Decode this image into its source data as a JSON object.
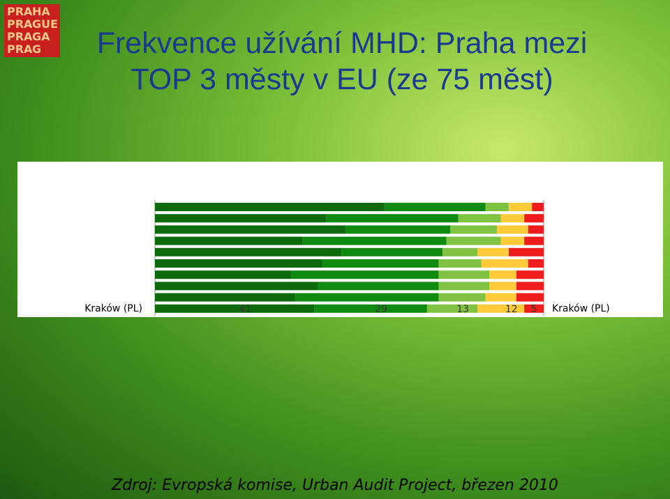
{
  "logo": [
    [
      "PRA",
      "HA"
    ],
    [
      "PRA",
      "GUE"
    ],
    [
      "PRA",
      "GA"
    ],
    [
      "PRA",
      "G"
    ]
  ],
  "source": "Zdroj: Evropská komise, Urban Audit Project, březen 2010",
  "chart_data": {
    "type": "stacked-bar-horizontal",
    "title": "Frekvence užívání MHD: Praha mezi TOP 3 městy v EU (ze 75 měst)",
    "categories": [
      null,
      null,
      null,
      null,
      null,
      null,
      null,
      null,
      null,
      "Kraków (PL)"
    ],
    "xlim": [
      0,
      100
    ],
    "series": [
      {
        "color": "#0d6a0d",
        "values": [
          59,
          44,
          49,
          38,
          48,
          43,
          35,
          42,
          36,
          41
        ]
      },
      {
        "color": "#118a11",
        "values": [
          26,
          34,
          27,
          37,
          26,
          30,
          38,
          31,
          37,
          29
        ]
      },
      {
        "color": "#80c242",
        "values": [
          6,
          11,
          12,
          14,
          9,
          11,
          13,
          13,
          12,
          13
        ]
      },
      {
        "color": "#fdcb3a",
        "values": [
          6,
          6,
          8,
          6,
          8,
          12,
          7,
          7,
          8,
          12
        ]
      },
      {
        "color": "#ee1c1c",
        "values": [
          3,
          5,
          4,
          5,
          9,
          4,
          7,
          7,
          7,
          5
        ]
      }
    ]
  }
}
